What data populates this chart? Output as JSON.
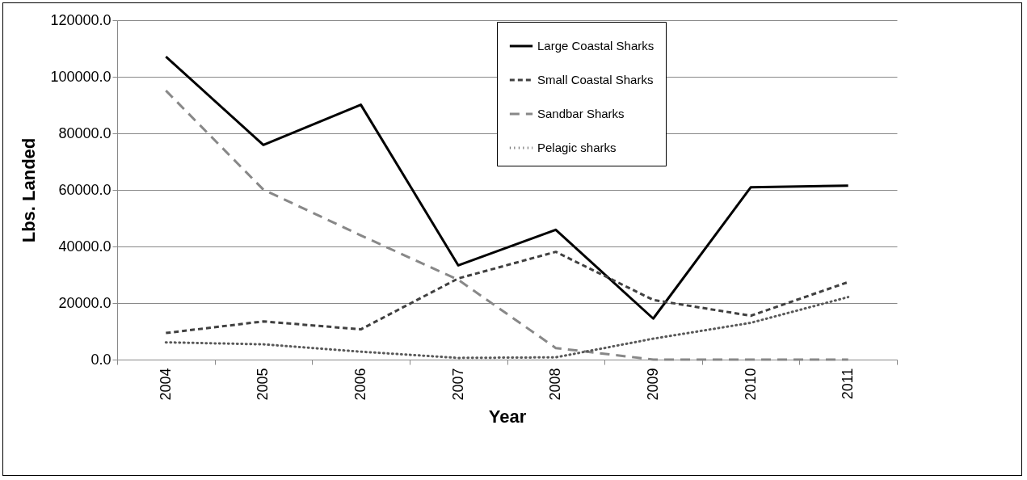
{
  "chart_data": {
    "type": "line",
    "xlabel": "Year",
    "ylabel": "Lbs. Landed",
    "categories": [
      "2004",
      "2005",
      "2006",
      "2007",
      "2008",
      "2009",
      "2010",
      "2011"
    ],
    "series": [
      {
        "name": "Large Coastal Sharks",
        "color": "#000000",
        "line_style": "solid",
        "values": [
          107100,
          75900,
          90100,
          33300,
          45900,
          14500,
          60900,
          61500
        ]
      },
      {
        "name": "Small Coastal Sharks",
        "color": "#404040",
        "line_style": "dashed",
        "values": [
          9400,
          13500,
          10700,
          28700,
          38100,
          21100,
          15500,
          27400
        ]
      },
      {
        "name": "Sandbar Sharks",
        "color": "#888888",
        "line_style": "longdashed",
        "values": [
          95100,
          60100,
          43900,
          28200,
          4100,
          0,
          0,
          0
        ]
      },
      {
        "name": "Pelagic sharks",
        "color": "#595959",
        "line_style": "dotted",
        "values": [
          6100,
          5400,
          2800,
          600,
          800,
          7400,
          13000,
          22100
        ]
      }
    ],
    "ylim": [
      0,
      120000
    ],
    "yticks": [
      {
        "value": 0,
        "label": "0.0"
      },
      {
        "value": 20000,
        "label": "20000.0"
      },
      {
        "value": 40000,
        "label": "40000.0"
      },
      {
        "value": 60000,
        "label": "60000.0"
      },
      {
        "value": 80000,
        "label": "80000.0"
      },
      {
        "value": 100000,
        "label": "100000.0"
      },
      {
        "value": 120000,
        "label": "120000.0"
      }
    ],
    "grid": "y",
    "legend": "top right",
    "marker": "none"
  }
}
